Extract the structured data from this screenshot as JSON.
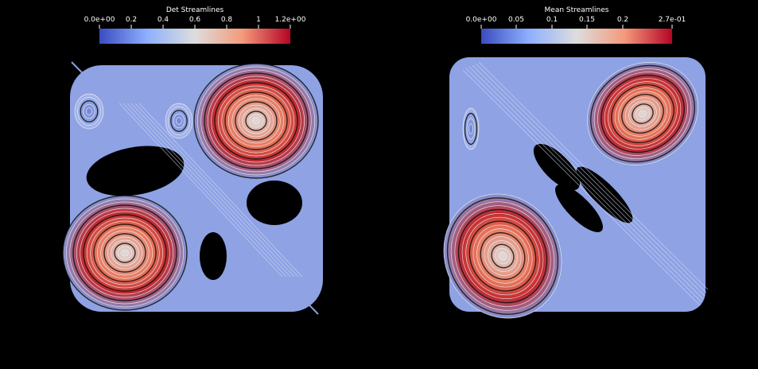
{
  "panels": [
    {
      "colorbar": {
        "title": "Det Streamlines",
        "ticks": [
          "0.0e+00",
          "0.2",
          "0.4",
          "0.6",
          "0.8",
          "1",
          "1.2e+00"
        ]
      }
    },
    {
      "colorbar": {
        "title": "Mean Streamlines",
        "ticks": [
          "0.0e+00",
          "0.05",
          "0.1",
          "0.15",
          "0.2",
          "2.7e-01"
        ]
      }
    }
  ]
}
